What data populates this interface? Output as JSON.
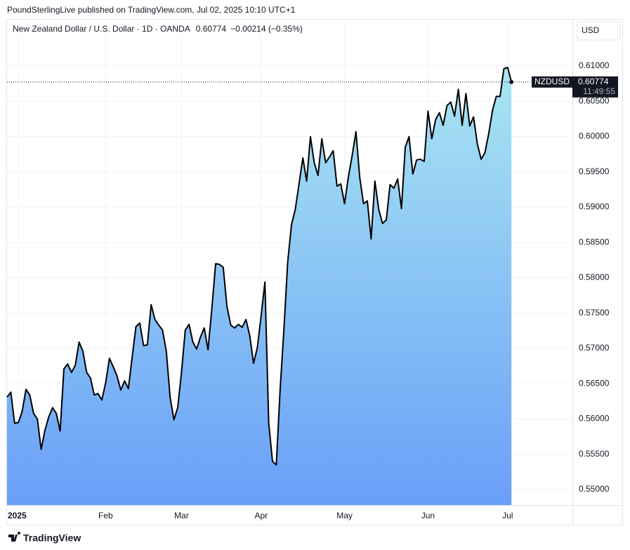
{
  "header": "PoundSterlingLive published on TradingView.com, Jul 02, 2025 10:10 UTC+1",
  "footer": "TradingView",
  "chart_data": {
    "type": "area",
    "title": "New Zealand Dollar / U.S. Dollar · 1D · OANDA",
    "legend_last": "0.60774",
    "legend_change": "−0.00214 (−0.35%)",
    "currency": "USD",
    "price_tag": {
      "symbol": "NZDUSD",
      "last": "0.60774",
      "countdown": "11:49:55"
    },
    "color": "#000000",
    "fill_top": "#a8e6f2",
    "fill_bottom": "#6a9ff8",
    "grid": true,
    "categories": [
      null,
      null,
      null,
      "2025",
      null,
      null,
      null,
      null,
      null,
      null,
      null,
      null,
      null,
      null,
      null,
      null,
      null,
      null,
      null,
      null,
      null,
      null,
      null,
      null,
      null,
      null,
      "Feb",
      null,
      null,
      null,
      null,
      null,
      null,
      null,
      null,
      null,
      null,
      null,
      null,
      null,
      null,
      null,
      null,
      null,
      null,
      null,
      "Mar",
      null,
      null,
      null,
      null,
      null,
      null,
      null,
      null,
      null,
      null,
      null,
      null,
      null,
      null,
      null,
      null,
      null,
      null,
      null,
      null,
      "Apr",
      null,
      null,
      null,
      null,
      null,
      null,
      null,
      null,
      null,
      null,
      null,
      null,
      null,
      null,
      null,
      null,
      null,
      null,
      null,
      null,
      null,
      "May",
      null,
      null,
      null,
      null,
      null,
      null,
      null,
      null,
      null,
      null,
      null,
      null,
      null,
      null,
      null,
      null,
      null,
      null,
      null,
      null,
      null,
      "Jun",
      null,
      null,
      null,
      null,
      null,
      null,
      null,
      null,
      null,
      null,
      null,
      null,
      null,
      null,
      null,
      null,
      null,
      null,
      null,
      null,
      "Jul",
      null
    ],
    "values": [
      0.5631,
      0.5638,
      0.5594,
      0.5595,
      0.5611,
      0.5642,
      0.5634,
      0.5608,
      0.56,
      0.5557,
      0.5584,
      0.5603,
      0.5616,
      0.5608,
      0.5583,
      0.5671,
      0.5678,
      0.5666,
      0.5676,
      0.5709,
      0.5696,
      0.5666,
      0.5658,
      0.5634,
      0.5636,
      0.5627,
      0.5651,
      0.5686,
      0.5674,
      0.5661,
      0.5641,
      0.5654,
      0.5643,
      0.5688,
      0.5731,
      0.5736,
      0.5704,
      0.5705,
      0.5762,
      0.5741,
      0.5733,
      0.5726,
      0.5696,
      0.5631,
      0.5599,
      0.5616,
      0.5666,
      0.5726,
      0.5734,
      0.5709,
      0.5699,
      0.5716,
      0.5729,
      0.5698,
      0.5756,
      0.582,
      0.5819,
      0.5815,
      0.5759,
      0.5733,
      0.5729,
      0.5734,
      0.573,
      0.5741,
      0.5718,
      0.5679,
      0.5701,
      0.5746,
      0.5794,
      0.5594,
      0.554,
      0.5535,
      0.5641,
      0.5726,
      0.5822,
      0.5875,
      0.5897,
      0.5933,
      0.597,
      0.5937,
      0.6,
      0.5963,
      0.5945,
      0.5997,
      0.5963,
      0.5971,
      0.598,
      0.593,
      0.5933,
      0.5905,
      0.5943,
      0.5973,
      0.6007,
      0.5942,
      0.5905,
      0.5909,
      0.5855,
      0.5937,
      0.5897,
      0.5877,
      0.5882,
      0.5932,
      0.5927,
      0.594,
      0.5898,
      0.5985,
      0.6,
      0.5947,
      0.5967,
      0.5968,
      0.5965,
      0.6036,
      0.5997,
      0.6024,
      0.6034,
      0.6016,
      0.6044,
      0.6049,
      0.6029,
      0.6067,
      0.6016,
      0.6061,
      0.6015,
      0.6028,
      0.599,
      0.5968,
      0.5977,
      0.6004,
      0.6037,
      0.6057,
      0.6057,
      0.6096,
      0.6098,
      0.60774
    ],
    "ylim": [
      0.54781,
      0.61667
    ],
    "yticks": [
      {
        "value": 0.55,
        "label": "0.55000"
      },
      {
        "value": 0.555,
        "label": "0.55500"
      },
      {
        "value": 0.56,
        "label": "0.56000"
      },
      {
        "value": 0.565,
        "label": "0.56500"
      },
      {
        "value": 0.57,
        "label": "0.57000"
      },
      {
        "value": 0.575,
        "label": "0.57500"
      },
      {
        "value": 0.58,
        "label": "0.58000"
      },
      {
        "value": 0.585,
        "label": "0.58500"
      },
      {
        "value": 0.59,
        "label": "0.59000"
      },
      {
        "value": 0.595,
        "label": "0.59500"
      },
      {
        "value": 0.6,
        "label": "0.60000"
      },
      {
        "value": 0.605,
        "label": "0.60500"
      },
      {
        "value": 0.61,
        "label": "0.61000"
      }
    ]
  }
}
